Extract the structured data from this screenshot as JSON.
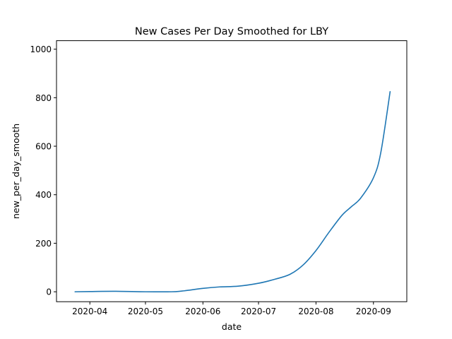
{
  "chart_data": {
    "type": "line",
    "title": "New Cases Per Day Smoothed for LBY",
    "xlabel": "date",
    "ylabel": "new_per_day_smooth",
    "xlim": [
      "2020-03-14",
      "2020-09-19"
    ],
    "ylim": [
      -41,
      1035
    ],
    "x_ticks": [
      "2020-04",
      "2020-05",
      "2020-06",
      "2020-07",
      "2020-08",
      "2020-09"
    ],
    "y_ticks": [
      0,
      200,
      400,
      600,
      800,
      1000
    ],
    "grid": false,
    "series": [
      {
        "color": "#1f77b4",
        "points": [
          {
            "x": "2020-03-24",
            "y": 0
          },
          {
            "x": "2020-04-01",
            "y": 1
          },
          {
            "x": "2020-04-15",
            "y": 2
          },
          {
            "x": "2020-05-01",
            "y": 0
          },
          {
            "x": "2020-05-15",
            "y": 0
          },
          {
            "x": "2020-05-22",
            "y": 4
          },
          {
            "x": "2020-06-01",
            "y": 14
          },
          {
            "x": "2020-06-10",
            "y": 20
          },
          {
            "x": "2020-06-20",
            "y": 23
          },
          {
            "x": "2020-07-01",
            "y": 35
          },
          {
            "x": "2020-07-10",
            "y": 52
          },
          {
            "x": "2020-07-18",
            "y": 72
          },
          {
            "x": "2020-07-25",
            "y": 110
          },
          {
            "x": "2020-08-01",
            "y": 170
          },
          {
            "x": "2020-08-08",
            "y": 245
          },
          {
            "x": "2020-08-15",
            "y": 315
          },
          {
            "x": "2020-08-20",
            "y": 350
          },
          {
            "x": "2020-08-25",
            "y": 385
          },
          {
            "x": "2020-09-01",
            "y": 470
          },
          {
            "x": "2020-09-05",
            "y": 575
          },
          {
            "x": "2020-09-10",
            "y": 825
          }
        ]
      }
    ]
  }
}
